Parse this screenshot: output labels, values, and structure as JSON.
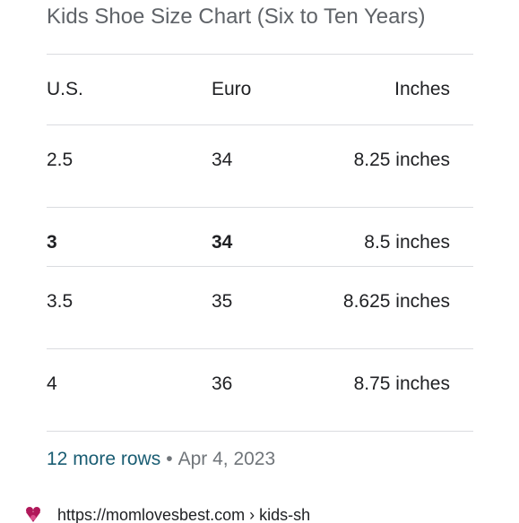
{
  "title": "Kids Shoe Size Chart (Six to Ten Years)",
  "table": {
    "headers": {
      "us": "U.S.",
      "euro": "Euro",
      "inches": "Inches"
    },
    "rows": [
      {
        "us": "2.5",
        "euro": "34",
        "inches": "8.25 inches"
      },
      {
        "us": "3",
        "euro": "34",
        "inches": "8.5 inches"
      },
      {
        "us": "3.5",
        "euro": "35",
        "inches": "8.625 inches"
      },
      {
        "us": "4",
        "euro": "36",
        "inches": "8.75 inches"
      }
    ]
  },
  "footer": {
    "more_rows": "12 more rows",
    "separator": "•",
    "date": "Apr 4, 2023"
  },
  "source": {
    "url": "https://momlovesbest.com › kids-sh",
    "favicon_icon": "heart-logo-icon",
    "favicon_color": "#b0185a"
  },
  "colors": {
    "title": "#5f6368",
    "link": "#1a5d73",
    "divider": "#dadce0",
    "meta": "#70757a"
  }
}
